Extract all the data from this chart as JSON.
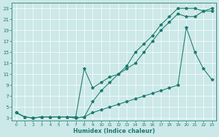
{
  "xlabel": "Humidex (Indice chaleur)",
  "bg_color": "#cce8e8",
  "grid_color": "#ffffff",
  "line_color": "#1a7a6e",
  "xlim": [
    -0.5,
    23.5
  ],
  "ylim": [
    2.5,
    24
  ],
  "xticks": [
    0,
    1,
    2,
    3,
    4,
    5,
    6,
    7,
    8,
    9,
    10,
    11,
    12,
    13,
    14,
    15,
    16,
    17,
    18,
    19,
    20,
    21,
    22,
    23
  ],
  "yticks": [
    3,
    5,
    7,
    9,
    11,
    13,
    15,
    17,
    19,
    21,
    23
  ],
  "line1_x": [
    0,
    1,
    2,
    3,
    4,
    5,
    6,
    7,
    8,
    9,
    10,
    11,
    12,
    13,
    14,
    15,
    16,
    17,
    18,
    19,
    20,
    21,
    22,
    23
  ],
  "line1_y": [
    4,
    3.2,
    3,
    3.2,
    3.2,
    3.2,
    3.2,
    3,
    3.2,
    6,
    8,
    9.5,
    11,
    12,
    13,
    15,
    17,
    19,
    20.5,
    22,
    21.5,
    21.5,
    22.5,
    23
  ],
  "line2_x": [
    0,
    1,
    2,
    3,
    4,
    5,
    6,
    7,
    8,
    9,
    10,
    11,
    12,
    13,
    14,
    15,
    16,
    17,
    18,
    19,
    20,
    21,
    22,
    23
  ],
  "line2_y": [
    4,
    3.2,
    3,
    3.2,
    3.2,
    3.2,
    3.2,
    3.2,
    12,
    8.5,
    9.5,
    10.5,
    11,
    12.5,
    15,
    16.5,
    18,
    20,
    21.5,
    23,
    23,
    23,
    22.5,
    22.5
  ],
  "line3_x": [
    0,
    1,
    2,
    3,
    4,
    5,
    6,
    7,
    8,
    9,
    10,
    11,
    12,
    13,
    14,
    15,
    16,
    17,
    18,
    19,
    20,
    21,
    22,
    23
  ],
  "line3_y": [
    4,
    3.2,
    3,
    3.2,
    3.2,
    3.2,
    3.2,
    3,
    3.2,
    4,
    4.5,
    5,
    5.5,
    6,
    6.5,
    7,
    7.5,
    8,
    8.5,
    9,
    19.5,
    15,
    12,
    10
  ]
}
